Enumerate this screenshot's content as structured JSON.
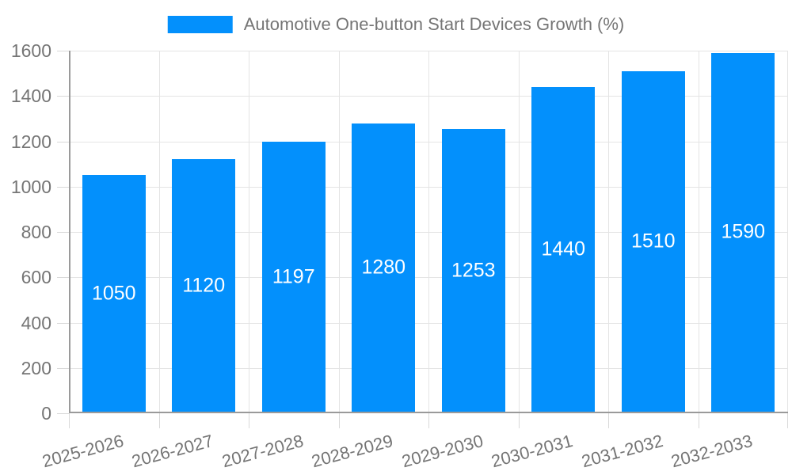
{
  "legend": {
    "label": "Automotive One-button Start Devices Growth (%)"
  },
  "chart_data": {
    "type": "bar",
    "title": "Automotive One-button Start Devices Growth (%)",
    "series_name": "Automotive One-button Start Devices Growth (%)",
    "categories": [
      "2025-2026",
      "2026-2027",
      "2027-2028",
      "2028-2029",
      "2029-2030",
      "2030-2031",
      "2031-2032",
      "2032-2033"
    ],
    "values": [
      1050,
      1120,
      1197,
      1280,
      1253,
      1440,
      1510,
      1590
    ],
    "value_labels": [
      "1050",
      "1120",
      "1197",
      "1280",
      "1253",
      "1440",
      "1510",
      "1590"
    ],
    "xlabel": "",
    "ylabel": "",
    "ylim": [
      0,
      1600
    ],
    "yticks": [
      0,
      200,
      400,
      600,
      800,
      1000,
      1200,
      1400,
      1600
    ],
    "grid": true,
    "legend_position": "top",
    "colors": {
      "bar": "#0390FC",
      "value_label": "#FFFFFF",
      "axis_label": "#757575",
      "legend_label": "#757575",
      "gridline": "#E4E4E4",
      "tick": "#D9D9D9",
      "axis_line": "#9A9A9A",
      "background": "#FFFFFF"
    }
  }
}
